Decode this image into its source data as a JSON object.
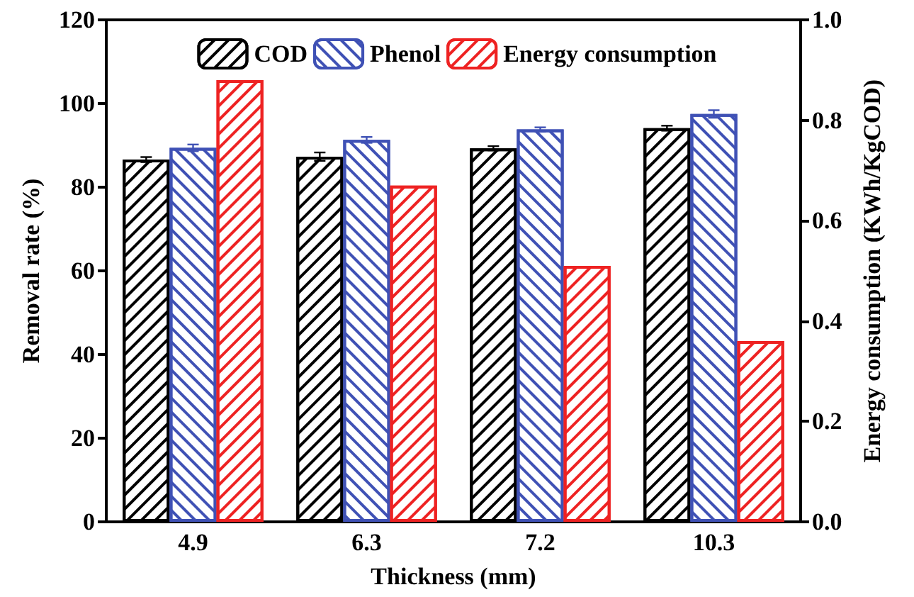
{
  "chart_data": {
    "type": "bar",
    "xlabel": "Thickness (mm)",
    "ylabel": "Removal rate (%)",
    "y2label": "Energy consumption (KWh/KgCOD)",
    "categories": [
      "4.9",
      "6.3",
      "7.2",
      "10.3"
    ],
    "series": [
      {
        "name": "COD",
        "color": "#000000",
        "values": [
          86.6,
          87.3,
          89.3,
          94.1
        ],
        "errors": [
          0.6,
          1.0,
          0.5,
          0.6
        ]
      },
      {
        "name": "Phenol",
        "color": "#3f51b5",
        "values": [
          89.4,
          91.3,
          93.8,
          97.5
        ],
        "errors": [
          0.8,
          0.7,
          0.5,
          0.9
        ]
      },
      {
        "name": "Energy consumption",
        "color": "#ee2222",
        "axis": "y2",
        "values": [
          0.88,
          0.67,
          0.51,
          0.36
        ]
      }
    ],
    "ylim": [
      0,
      120
    ],
    "yticks": [
      0,
      20,
      40,
      60,
      80,
      100,
      120
    ],
    "y2lim": [
      0,
      1.0
    ],
    "y2ticks": [
      {
        "value": 0,
        "label": "0.0"
      },
      0.2,
      0.4,
      0.6,
      0.8,
      {
        "value": 1,
        "label": "1.0"
      }
    ],
    "grid": false,
    "legend": "top"
  }
}
